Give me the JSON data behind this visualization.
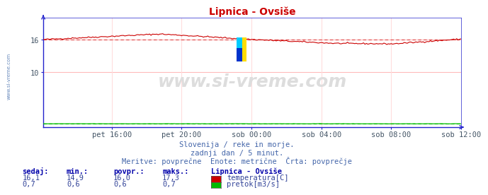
{
  "title": "Lipnica - Ovsiše",
  "title_color": "#cc0000",
  "bg_color": "#ffffff",
  "plot_bg_color": "#ffffff",
  "grid_color_h": "#ffbbbb",
  "grid_color_v": "#ffdddd",
  "axis_color": "#2222cc",
  "tick_label_color": "#445566",
  "yticks": [
    10,
    16
  ],
  "xtick_labels": [
    "pet 16:00",
    "pet 20:00",
    "sob 00:00",
    "sob 04:00",
    "sob 08:00",
    "sob 12:00"
  ],
  "xtick_positions": [
    47,
    95,
    143,
    191,
    239,
    287
  ],
  "temp_color": "#cc0000",
  "flow_color": "#00bb00",
  "avg_temp_color": "#dd4444",
  "avg_flow_color": "#00bb00",
  "watermark": "www.si-vreme.com",
  "watermark_color": "#dddddd",
  "sub1": "Slovenija / reke in morje.",
  "sub2": "zadnji dan / 5 minut.",
  "sub3": "Meritve: povprečne  Enote: metrične  Črta: povprečje",
  "legend_title": "Lipnica - Ovsiše",
  "legend_items": [
    "temperatura[C]",
    "pretok[m3/s]"
  ],
  "legend_colors": [
    "#cc0000",
    "#00bb00"
  ],
  "table_headers": [
    "sedaj:",
    "min.:",
    "povpr.:",
    "maks.:"
  ],
  "table_temp": [
    "16,1",
    "14,9",
    "16,0",
    "17,3"
  ],
  "table_flow": [
    "0,7",
    "0,6",
    "0,6",
    "0,7"
  ],
  "text_color_header": "#0000aa",
  "text_color_value": "#334499",
  "sub_text_color": "#4466aa",
  "avg_temp": 16.0,
  "n_points": 288,
  "ylim": [
    0,
    20
  ]
}
